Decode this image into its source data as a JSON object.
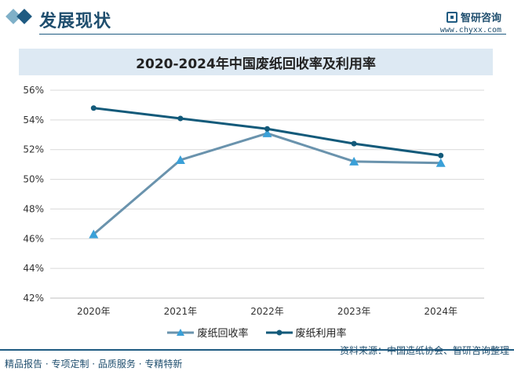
{
  "header": {
    "section_title": "发展现状",
    "logo_name": "智研咨询",
    "logo_url": "www.chyxx.com"
  },
  "chart_data": {
    "type": "line",
    "title": "2020-2024年中国废纸回收率及利用率",
    "categories": [
      "2020年",
      "2021年",
      "2022年",
      "2023年",
      "2024年"
    ],
    "ylim": [
      42,
      56
    ],
    "yticks": [
      42,
      44,
      46,
      48,
      50,
      52,
      54,
      56
    ],
    "ytick_labels": [
      "42%",
      "44%",
      "46%",
      "48%",
      "50%",
      "52%",
      "54%",
      "56%"
    ],
    "grid": true,
    "legend_position": "bottom",
    "series": [
      {
        "name": "废纸回收率",
        "values": [
          46.3,
          51.3,
          53.1,
          51.2,
          51.1
        ],
        "color": "#6a93ad",
        "marker": "triangle"
      },
      {
        "name": "废纸利用率",
        "values": [
          54.8,
          54.1,
          53.4,
          52.4,
          51.6
        ],
        "color": "#135a7a",
        "marker": "circle"
      }
    ]
  },
  "footer": {
    "left": "精品报告 · 专项定制 · 品质服务 · 专精特新",
    "right": "资料来源：中国造纸协会、智研咨询整理"
  }
}
